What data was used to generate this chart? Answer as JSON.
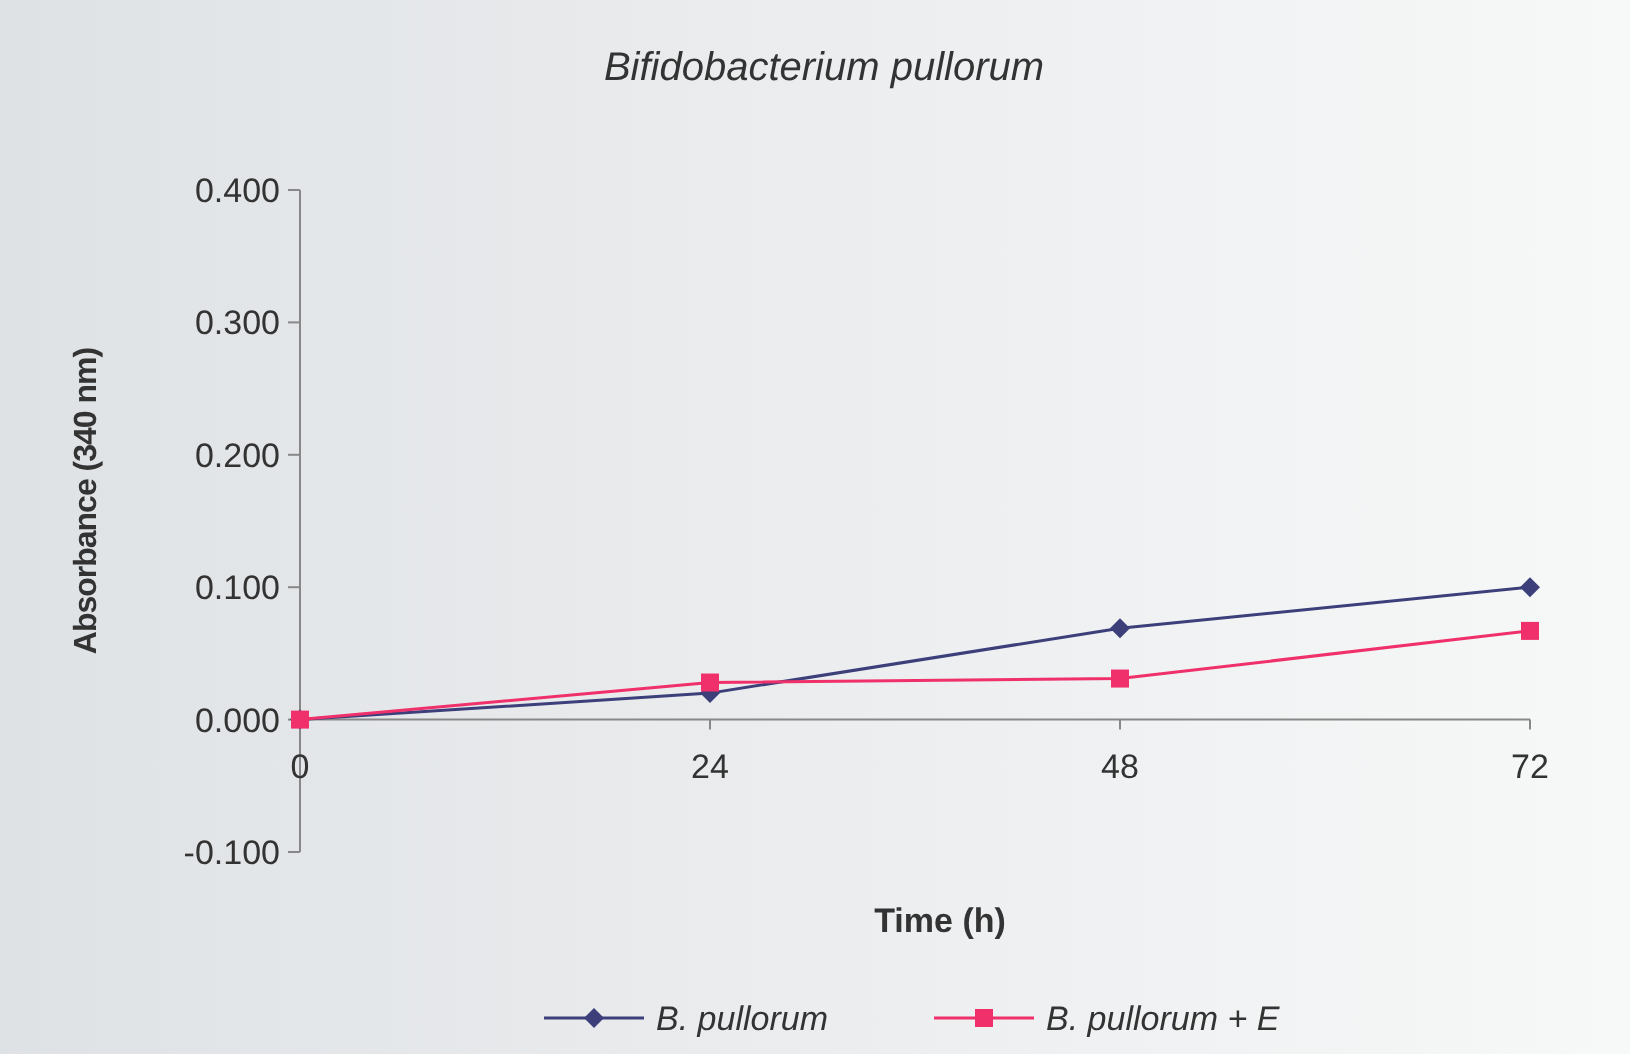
{
  "chart_data": {
    "type": "line",
    "title": "Bifidobacterium pullorum",
    "xlabel": "Time (h)",
    "ylabel": "Absorbance (340 nm)",
    "x": [
      0,
      24,
      48,
      72
    ],
    "xlim": [
      0,
      72
    ],
    "xticks": [
      0,
      24,
      48,
      72
    ],
    "ylim": [
      -0.1,
      0.4
    ],
    "yticks": [
      {
        "value": -0.1,
        "label": "-0.100"
      },
      {
        "value": 0,
        "label": "0.000"
      },
      {
        "value": 0.1,
        "label": "0.100"
      },
      {
        "value": 0.2,
        "label": "0.200"
      },
      {
        "value": 0.3,
        "label": "0.300"
      },
      {
        "value": 0.4,
        "label": "0.400"
      }
    ],
    "grid": false,
    "legend": "bottom",
    "series": [
      {
        "name": "B. pullorum",
        "color": "#3c3f7a",
        "marker": "diamond",
        "values": [
          0,
          0.02,
          0.069,
          0.1
        ]
      },
      {
        "name": "B. pullorum + E",
        "color": "#f0306a",
        "marker": "square",
        "values": [
          0,
          0.028,
          0.031,
          0.067
        ]
      }
    ]
  }
}
